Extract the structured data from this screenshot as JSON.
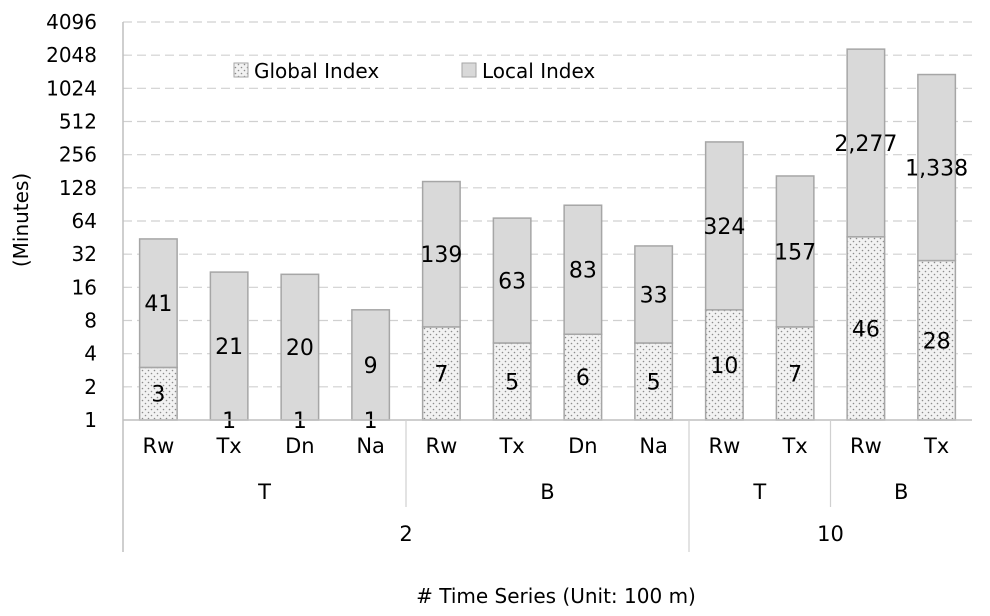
{
  "chart_data": {
    "type": "bar",
    "stacked": true,
    "ylabel": "(Minutes)",
    "xlabel": "# Time Series (Unit: 100 m)",
    "yscale": "log2",
    "ylim": [
      1,
      4096
    ],
    "yticks": [
      "1",
      "2",
      "4",
      "8",
      "16",
      "32",
      "64",
      "128",
      "256",
      "512",
      "1024",
      "2048",
      "4096"
    ],
    "grid": "horizontal dashed",
    "legend_position": "top-left",
    "categories": [
      "Rw",
      "Tx",
      "Dn",
      "Na",
      "Rw",
      "Tx",
      "Dn",
      "Na",
      "Rw",
      "Tx",
      "Rw",
      "Tx"
    ],
    "group_level1": [
      {
        "label": "T",
        "span": 4
      },
      {
        "label": "B",
        "span": 4
      },
      {
        "label": "T",
        "span": 2
      },
      {
        "label": "B",
        "span": 2
      }
    ],
    "group_level2": [
      {
        "label": "2",
        "span": 8
      },
      {
        "label": "10",
        "span": 4
      }
    ],
    "series": [
      {
        "name": "Global Index",
        "values": [
          3,
          1,
          1,
          1,
          7,
          5,
          6,
          5,
          10,
          7,
          46,
          28
        ],
        "labels": [
          "3",
          "1",
          "1",
          "1",
          "7",
          "5",
          "6",
          "5",
          "10",
          "7",
          "46",
          "28"
        ]
      },
      {
        "name": "Local Index",
        "values": [
          41,
          21,
          20,
          9,
          139,
          63,
          83,
          33,
          324,
          157,
          2277,
          1338
        ],
        "labels": [
          "41",
          "21",
          "20",
          "9",
          "139",
          "63",
          "83",
          "33",
          "324",
          "157",
          "2,277",
          "1,338"
        ]
      }
    ],
    "colors": {
      "global": "#f2f2f2",
      "global_dot": "#8c8c8c",
      "local": "#d9d9d9",
      "outline": "#a6a6a6",
      "grid": "#d0d0d0"
    }
  }
}
